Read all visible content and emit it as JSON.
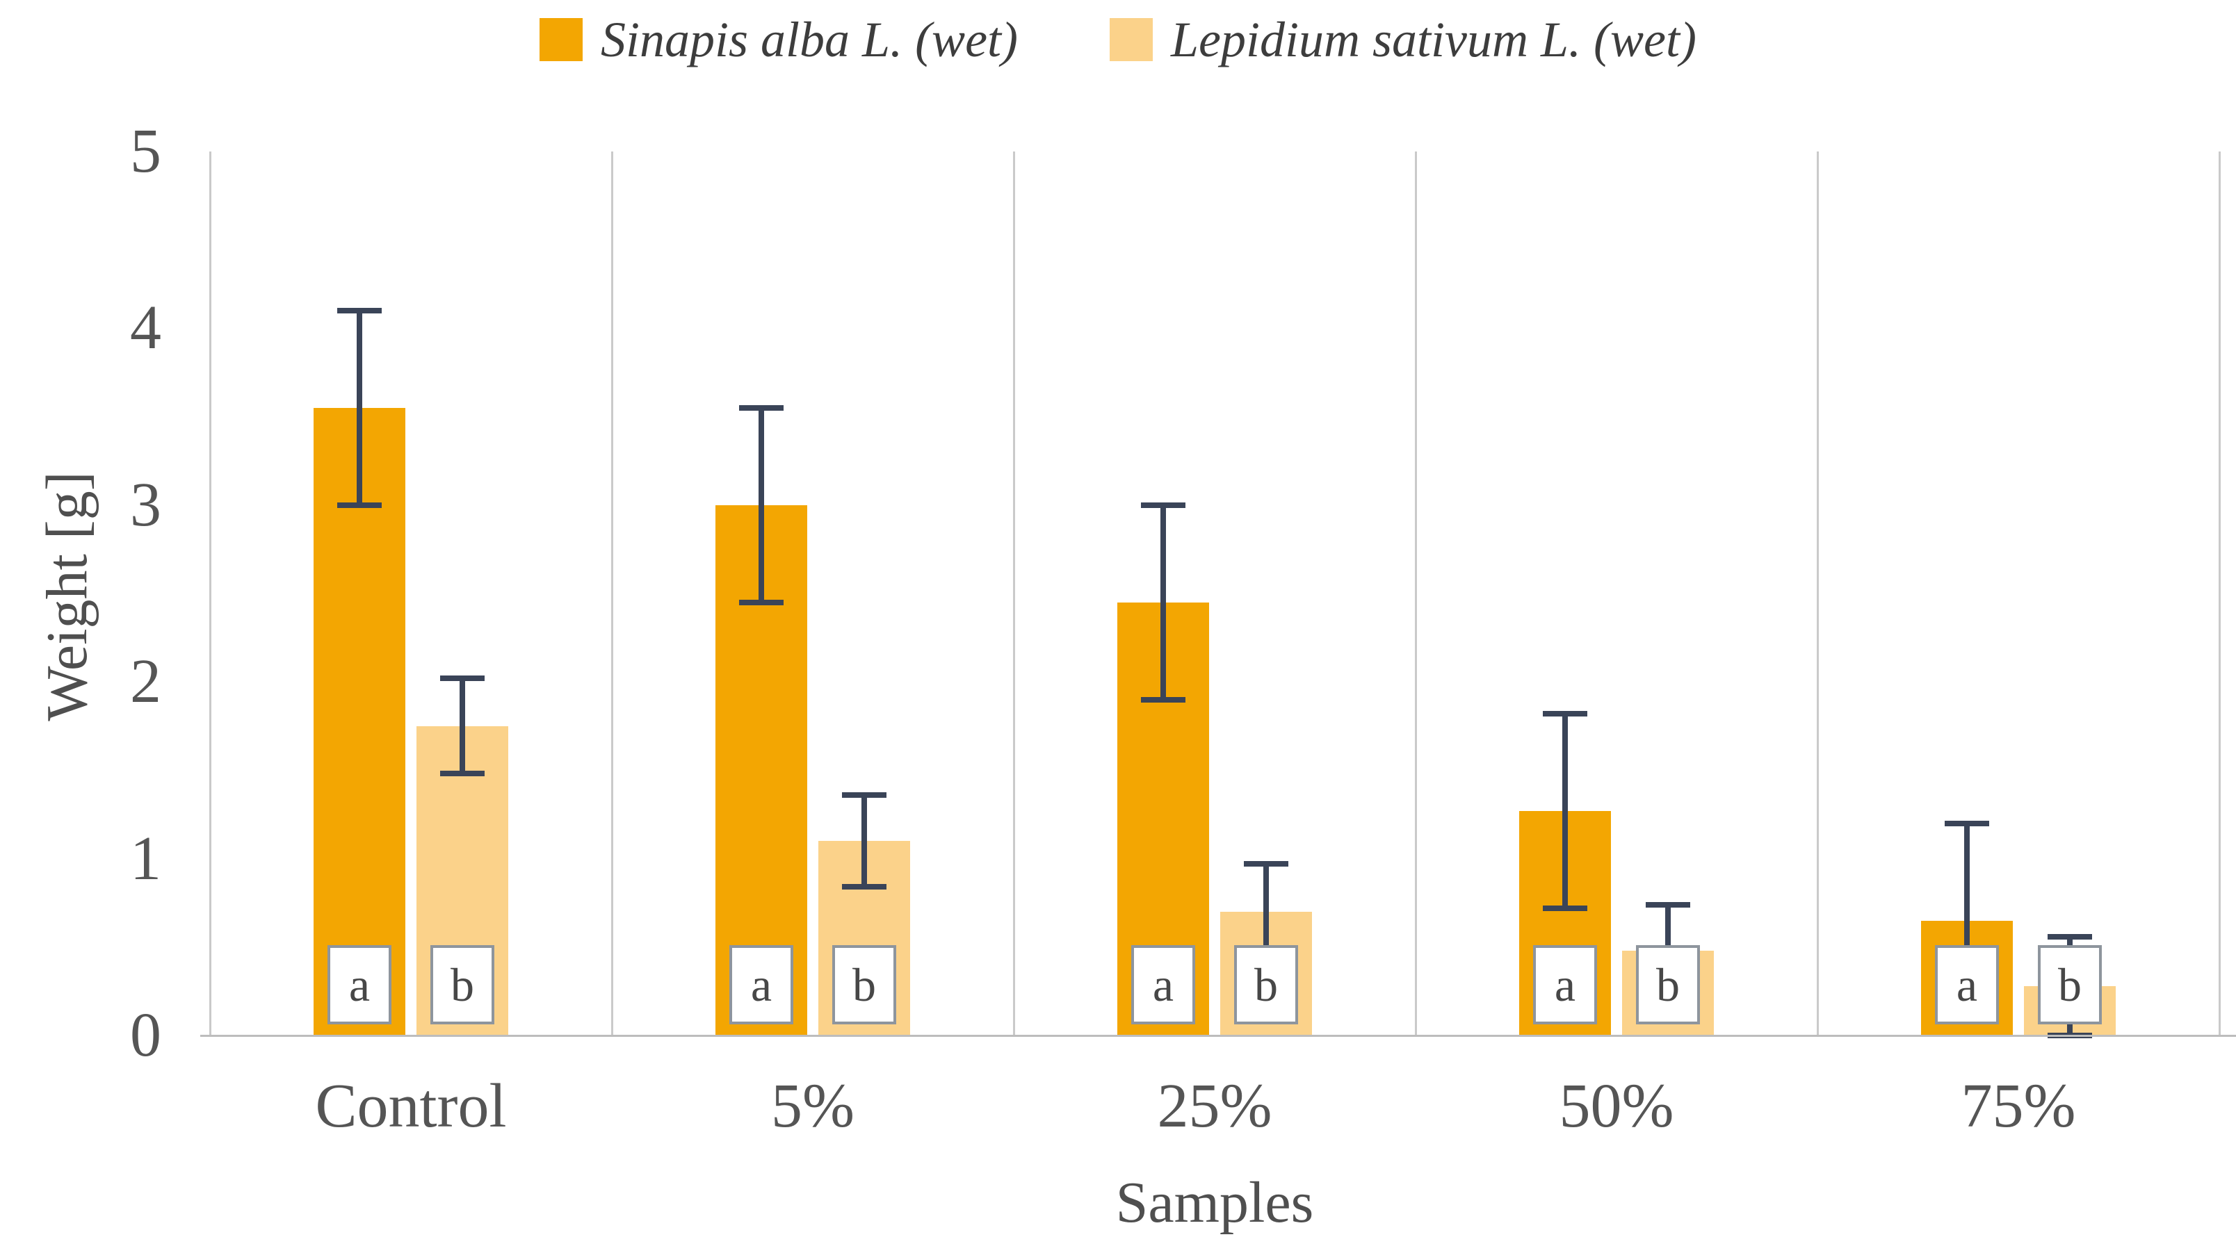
{
  "figure": {
    "background": "#ffffff",
    "text_color": "#555555",
    "grid_color": "#cacaca",
    "axis_line_color": "#bdbdbd",
    "error_bar_color": "#3a4458",
    "letter_box_border_color": "#8e959d"
  },
  "chart_data": {
    "type": "bar",
    "title": "",
    "categories": [
      "Control",
      "5%",
      "25%",
      "50%",
      "75%"
    ],
    "series": [
      {
        "name": "Sinapis alba L. (wet)",
        "color": "#f3a602",
        "letter": "a",
        "values": [
          3.55,
          3.0,
          2.45,
          1.27,
          0.65
        ],
        "errors": [
          0.55,
          0.55,
          0.55,
          0.55,
          0.55
        ]
      },
      {
        "name": "Lepidium sativum L. (wet)",
        "color": "#fbd28a",
        "letter": "b",
        "values": [
          1.75,
          1.1,
          0.7,
          0.48,
          0.28
        ],
        "errors": [
          0.27,
          0.26,
          0.27,
          0.26,
          0.28
        ]
      }
    ],
    "xlabel": "Samples",
    "ylabel": "Weight [g]",
    "ylim": [
      0,
      5
    ],
    "yticks": [
      0,
      1,
      2,
      3,
      4,
      5
    ],
    "grid": "vertical-category-separators",
    "legend_position": "top",
    "error_bars": "symmetric, with caps",
    "bar_annotations": "significance letters in white boxes at bar bases"
  }
}
